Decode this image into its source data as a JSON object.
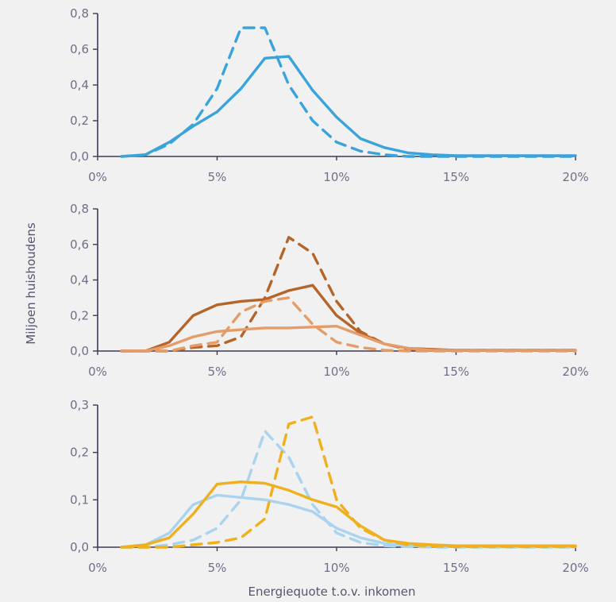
{
  "chart_data": [
    {
      "type": "line",
      "xlabel": "",
      "ylabel": "",
      "xlim": [
        0,
        20
      ],
      "ylim": [
        0,
        0.8
      ],
      "xticks": [
        "0%",
        "5%",
        "10%",
        "15%",
        "20%"
      ],
      "yticks": [
        "0,0",
        "0,2",
        "0,4",
        "0,6",
        "0,8"
      ],
      "x": [
        1,
        2,
        3,
        4,
        5,
        6,
        7,
        8,
        9,
        10,
        11,
        12,
        13,
        14,
        15,
        16,
        17,
        18,
        19,
        20
      ],
      "series": [
        {
          "style": "solid",
          "color": "#3aa3dc",
          "values": [
            0.0,
            0.01,
            0.08,
            0.17,
            0.25,
            0.38,
            0.55,
            0.56,
            0.37,
            0.22,
            0.1,
            0.05,
            0.02,
            0.01,
            0.005,
            0.005,
            0.005,
            0.005,
            0.005,
            0.005
          ]
        },
        {
          "style": "dashed",
          "color": "#3aa3dc",
          "values": [
            0.0,
            0.01,
            0.07,
            0.18,
            0.38,
            0.72,
            0.72,
            0.4,
            0.2,
            0.08,
            0.03,
            0.01,
            0.0,
            0.0,
            0.0,
            0.0,
            0.0,
            0.0,
            0.0,
            0.0
          ]
        }
      ]
    },
    {
      "type": "line",
      "xlabel": "",
      "ylabel": "Miljoen huishoudens",
      "xlim": [
        0,
        20
      ],
      "ylim": [
        0,
        0.8
      ],
      "xticks": [
        "0%",
        "5%",
        "10%",
        "15%",
        "20%"
      ],
      "yticks": [
        "0,0",
        "0,2",
        "0,4",
        "0,6",
        "0,8"
      ],
      "x": [
        1,
        2,
        3,
        4,
        5,
        6,
        7,
        8,
        9,
        10,
        11,
        12,
        13,
        14,
        15,
        16,
        17,
        18,
        19,
        20
      ],
      "series": [
        {
          "style": "solid",
          "color": "#b5652a",
          "values": [
            0.0,
            0.0,
            0.05,
            0.2,
            0.26,
            0.28,
            0.29,
            0.34,
            0.37,
            0.2,
            0.1,
            0.04,
            0.015,
            0.01,
            0.005,
            0.005,
            0.005,
            0.005,
            0.005,
            0.005
          ]
        },
        {
          "style": "dashed",
          "color": "#b5652a",
          "values": [
            0.0,
            0.0,
            0.0,
            0.02,
            0.03,
            0.08,
            0.3,
            0.64,
            0.55,
            0.28,
            0.11,
            0.04,
            0.01,
            0.005,
            0.005,
            0.005,
            0.005,
            0.005,
            0.005,
            0.005
          ]
        },
        {
          "style": "solid",
          "color": "#e49c68",
          "values": [
            0.0,
            0.0,
            0.03,
            0.08,
            0.11,
            0.12,
            0.13,
            0.13,
            0.135,
            0.14,
            0.09,
            0.04,
            0.015,
            0.005,
            0.005,
            0.005,
            0.005,
            0.005,
            0.005,
            0.005
          ]
        },
        {
          "style": "dashed",
          "color": "#e49c68",
          "values": [
            0.0,
            0.0,
            0.0,
            0.03,
            0.05,
            0.22,
            0.28,
            0.3,
            0.15,
            0.05,
            0.02,
            0.005,
            0.0,
            0.0,
            0.0,
            0.0,
            0.0,
            0.0,
            0.0,
            0.0
          ]
        }
      ]
    },
    {
      "type": "line",
      "xlabel": "Energiequote t.o.v. inkomen",
      "ylabel": "",
      "xlim": [
        0,
        20
      ],
      "ylim": [
        0,
        0.3
      ],
      "xticks": [
        "0%",
        "5%",
        "10%",
        "15%",
        "20%"
      ],
      "yticks": [
        "0,0",
        "0,1",
        "0,2",
        "0,3"
      ],
      "x": [
        1,
        2,
        3,
        4,
        5,
        6,
        7,
        8,
        9,
        10,
        11,
        12,
        13,
        14,
        15,
        16,
        17,
        18,
        19,
        20
      ],
      "series": [
        {
          "style": "solid",
          "color": "#a9d3ee",
          "values": [
            0.0,
            0.005,
            0.03,
            0.09,
            0.11,
            0.105,
            0.1,
            0.09,
            0.075,
            0.04,
            0.02,
            0.008,
            0.003,
            0.002,
            0.001,
            0.001,
            0.001,
            0.001,
            0.001,
            0.001
          ]
        },
        {
          "style": "dashed",
          "color": "#a9d3ee",
          "values": [
            0.0,
            0.0,
            0.005,
            0.015,
            0.04,
            0.1,
            0.245,
            0.19,
            0.09,
            0.03,
            0.01,
            0.003,
            0.001,
            0.0,
            0.0,
            0.0,
            0.0,
            0.0,
            0.0,
            0.0
          ]
        },
        {
          "style": "solid",
          "color": "#f0b01e",
          "values": [
            0.0,
            0.005,
            0.02,
            0.07,
            0.133,
            0.138,
            0.135,
            0.12,
            0.1,
            0.085,
            0.045,
            0.015,
            0.008,
            0.005,
            0.003,
            0.003,
            0.003,
            0.003,
            0.003,
            0.003
          ]
        },
        {
          "style": "dashed",
          "color": "#f0b01e",
          "values": [
            0.0,
            0.0,
            0.0,
            0.005,
            0.01,
            0.02,
            0.06,
            0.26,
            0.275,
            0.1,
            0.04,
            0.015,
            0.005,
            0.002,
            0.001,
            0.001,
            0.001,
            0.001,
            0.001,
            0.001
          ]
        }
      ]
    }
  ]
}
